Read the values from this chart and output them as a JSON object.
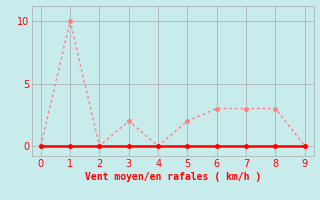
{
  "x_wind": [
    0,
    1,
    2,
    3,
    4,
    5,
    6,
    7,
    8,
    9
  ],
  "y_wind": [
    0,
    10,
    0,
    2,
    0,
    2,
    3,
    3,
    3,
    0
  ],
  "x_base": [
    0,
    1,
    2,
    3,
    4,
    5,
    6,
    7,
    8,
    9
  ],
  "y_base": [
    0,
    0,
    0,
    0,
    0,
    0,
    0,
    0,
    0,
    0
  ],
  "line_color": "#FF8080",
  "base_color": "#FF0000",
  "background_color": "#C8EBEB",
  "grid_color": "#AAAAAA",
  "xlabel": "Vent moyen/en rafales ( km/h )",
  "xlabel_color": "#FF0000",
  "tick_color": "#FF0000",
  "yticks": [
    0,
    5,
    10
  ],
  "xticks": [
    0,
    1,
    2,
    3,
    4,
    5,
    6,
    7,
    8,
    9
  ],
  "xlim": [
    -0.3,
    9.3
  ],
  "ylim": [
    -0.8,
    11.2
  ]
}
